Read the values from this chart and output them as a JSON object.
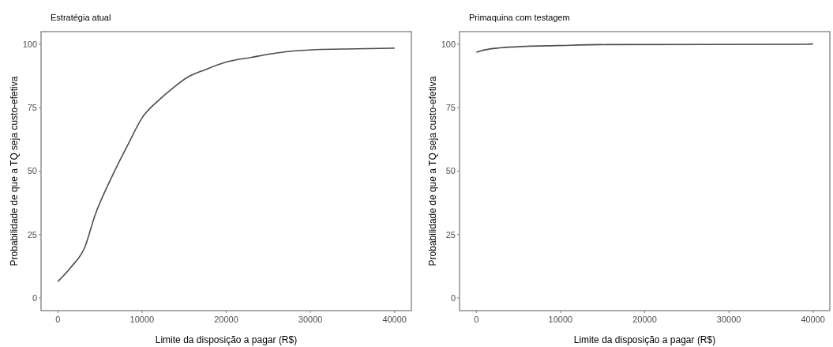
{
  "chart_data": [
    {
      "type": "line",
      "title": "Estratégia atual",
      "xlabel": "Limite da disposição a pagar (R$)",
      "ylabel": "Probabilidade de que a TQ seja custo-efetiva",
      "xlim": [
        -2000,
        42000
      ],
      "xticks": [
        0,
        10000,
        20000,
        30000,
        40000
      ],
      "ylim": [
        -5,
        105
      ],
      "yticks": [
        0,
        25,
        50,
        75,
        100
      ],
      "grid": false,
      "series": [
        {
          "color": "#4d4d4d",
          "x": [
            0,
            1600,
            3200,
            4400,
            6300,
            8500,
            10000,
            11900,
            13500,
            15400,
            17500,
            20000,
            22900,
            26000,
            30700,
            35400,
            40000
          ],
          "values": [
            6.5,
            12.3,
            20,
            32.5,
            47,
            61.6,
            71,
            77.7,
            82.3,
            87,
            90,
            93,
            94.8,
            96.6,
            97.9,
            98.2,
            98.5
          ]
        }
      ]
    },
    {
      "type": "line",
      "title": "Primaquina com testagem",
      "xlabel": "Limite da disposição a pagar (R$)",
      "ylabel": "Probabilidade de que a TQ seja custo-efetiva",
      "xlim": [
        -2000,
        42000
      ],
      "xticks": [
        0,
        10000,
        20000,
        30000,
        40000
      ],
      "ylim": [
        -5,
        105
      ],
      "yticks": [
        0,
        25,
        50,
        75,
        100
      ],
      "grid": false,
      "series": [
        {
          "color": "#4d4d4d",
          "x": [
            0,
            1000,
            2800,
            5900,
            9600,
            15800,
            39400,
            40000
          ],
          "values": [
            96.9,
            97.8,
            98.6,
            99.2,
            99.5,
            99.9,
            100,
            100.2
          ]
        }
      ]
    }
  ]
}
